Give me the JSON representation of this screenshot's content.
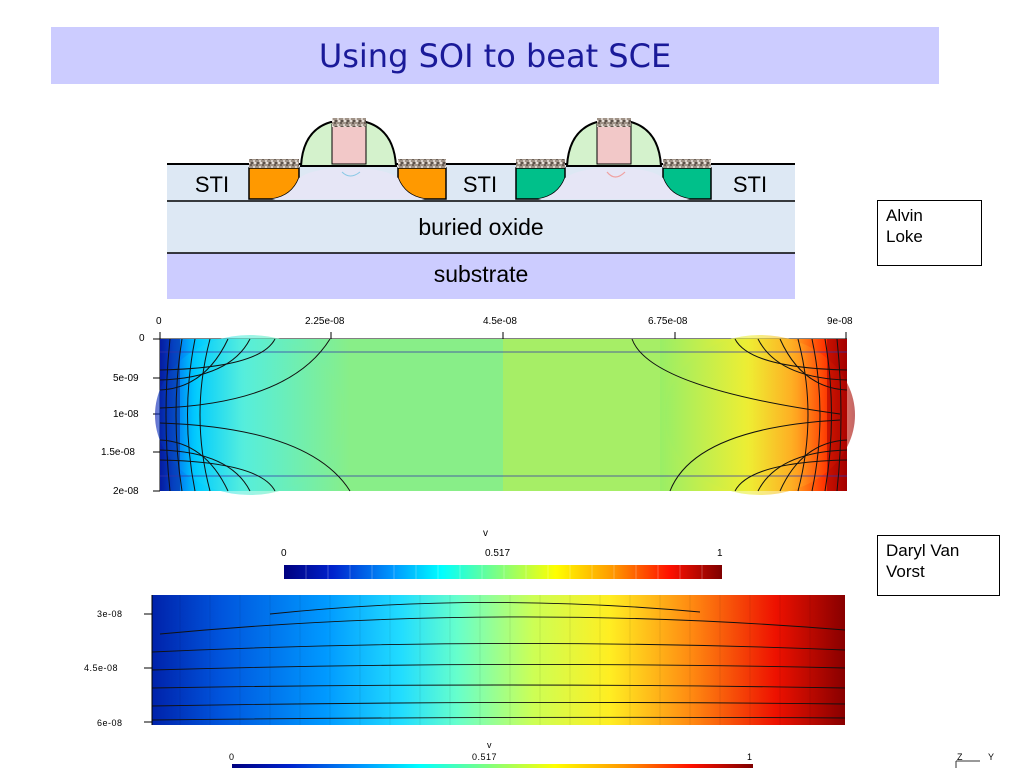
{
  "slide": {
    "title": "Using SOI to beat SCE"
  },
  "cross_section": {
    "layers": {
      "sti_left": "STI",
      "sti_middle": "STI",
      "sti_right": "STI",
      "buried_oxide": "buried oxide",
      "substrate": "substrate"
    },
    "colors": {
      "sti": "#dde8f4",
      "substrate": "#ccccff",
      "nmos_source_drain": "#ff9900",
      "pmos_source_drain": "#00c08a",
      "spacer": "#d4f2cc",
      "gate": "#f2c8c8",
      "silicide": "#9c8f86"
    }
  },
  "credits": {
    "author1_line1": "Alvin",
    "author1_line2": "Loke",
    "author2_line1": "Daryl Van",
    "author2_line2": "Vorst"
  },
  "plot1": {
    "x_ticks": [
      "0",
      "2.25e-08",
      "4.5e-08",
      "6.75e-08",
      "9e-08"
    ],
    "y_ticks": [
      "0",
      "5e-09",
      "1e-08",
      "1.5e-08",
      "2e-08"
    ]
  },
  "colorbar1": {
    "label": "v",
    "min": "0",
    "mid": "0.517",
    "max": "1"
  },
  "plot2": {
    "y_ticks": [
      "3e-08",
      "4.5e-08",
      "6e-08"
    ]
  },
  "colorbar2": {
    "label": "v",
    "min": "0",
    "mid": "0.517",
    "max": "1"
  },
  "axes_triad": {
    "z": "Z",
    "y": "Y"
  }
}
